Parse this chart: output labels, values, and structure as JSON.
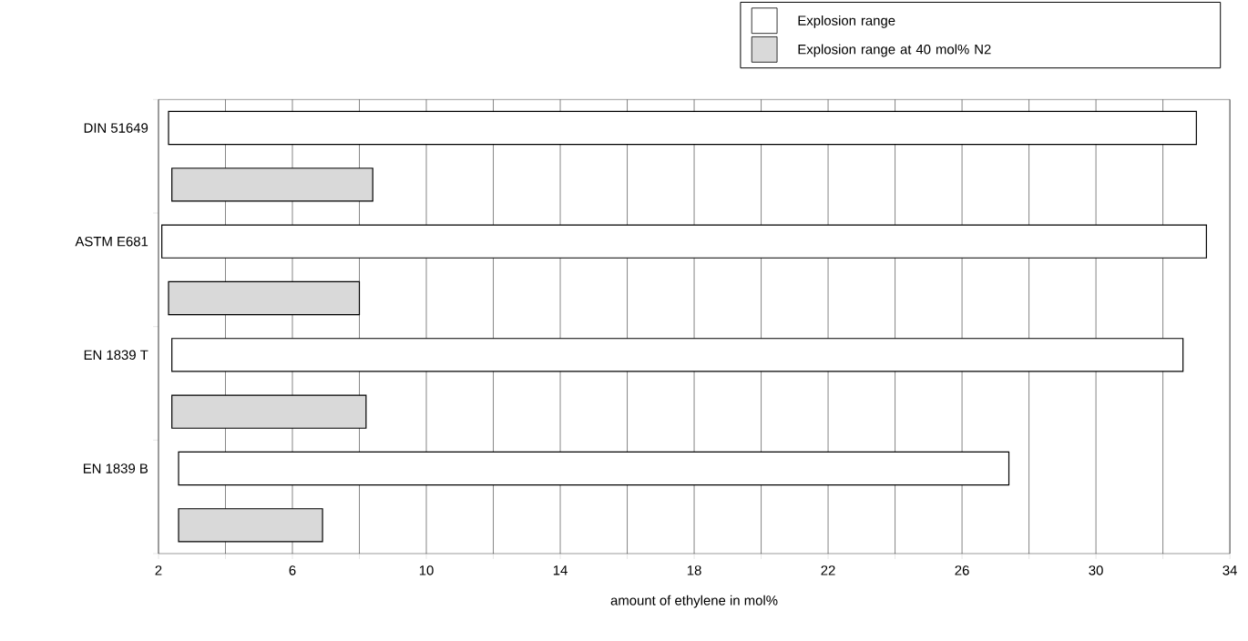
{
  "chart_data": {
    "type": "bar",
    "orientation": "horizontal",
    "categories": [
      "DIN 51649",
      "ASTM E681",
      "EN 1839 T",
      "EN 1839 B"
    ],
    "series": [
      {
        "name": "Explosion range",
        "color": "#ffffff",
        "base": [
          2.3,
          2.1,
          2.4,
          2.6
        ],
        "values": [
          30.7,
          31.2,
          30.2,
          24.8
        ]
      },
      {
        "name": "Explosion range at 40 mol% N2",
        "color": "#d9d9d9",
        "base": [
          2.4,
          2.3,
          2.4,
          2.6
        ],
        "values": [
          6.0,
          5.7,
          5.8,
          4.3
        ]
      }
    ],
    "xlabel": "amount of ethylene in mol%",
    "xlim": [
      2,
      34
    ],
    "xticks": [
      2,
      {
        "value": 4,
        "label": null
      },
      6,
      {
        "value": 8,
        "label": null
      },
      10,
      {
        "value": 12,
        "label": null
      },
      14,
      {
        "value": 16,
        "label": null
      },
      18,
      {
        "value": 20,
        "label": null
      },
      22,
      {
        "value": 24,
        "label": null
      },
      26,
      {
        "value": 28,
        "label": null
      },
      30,
      {
        "value": 32,
        "label": null
      },
      34
    ],
    "grid": "x",
    "legend": "top right"
  }
}
